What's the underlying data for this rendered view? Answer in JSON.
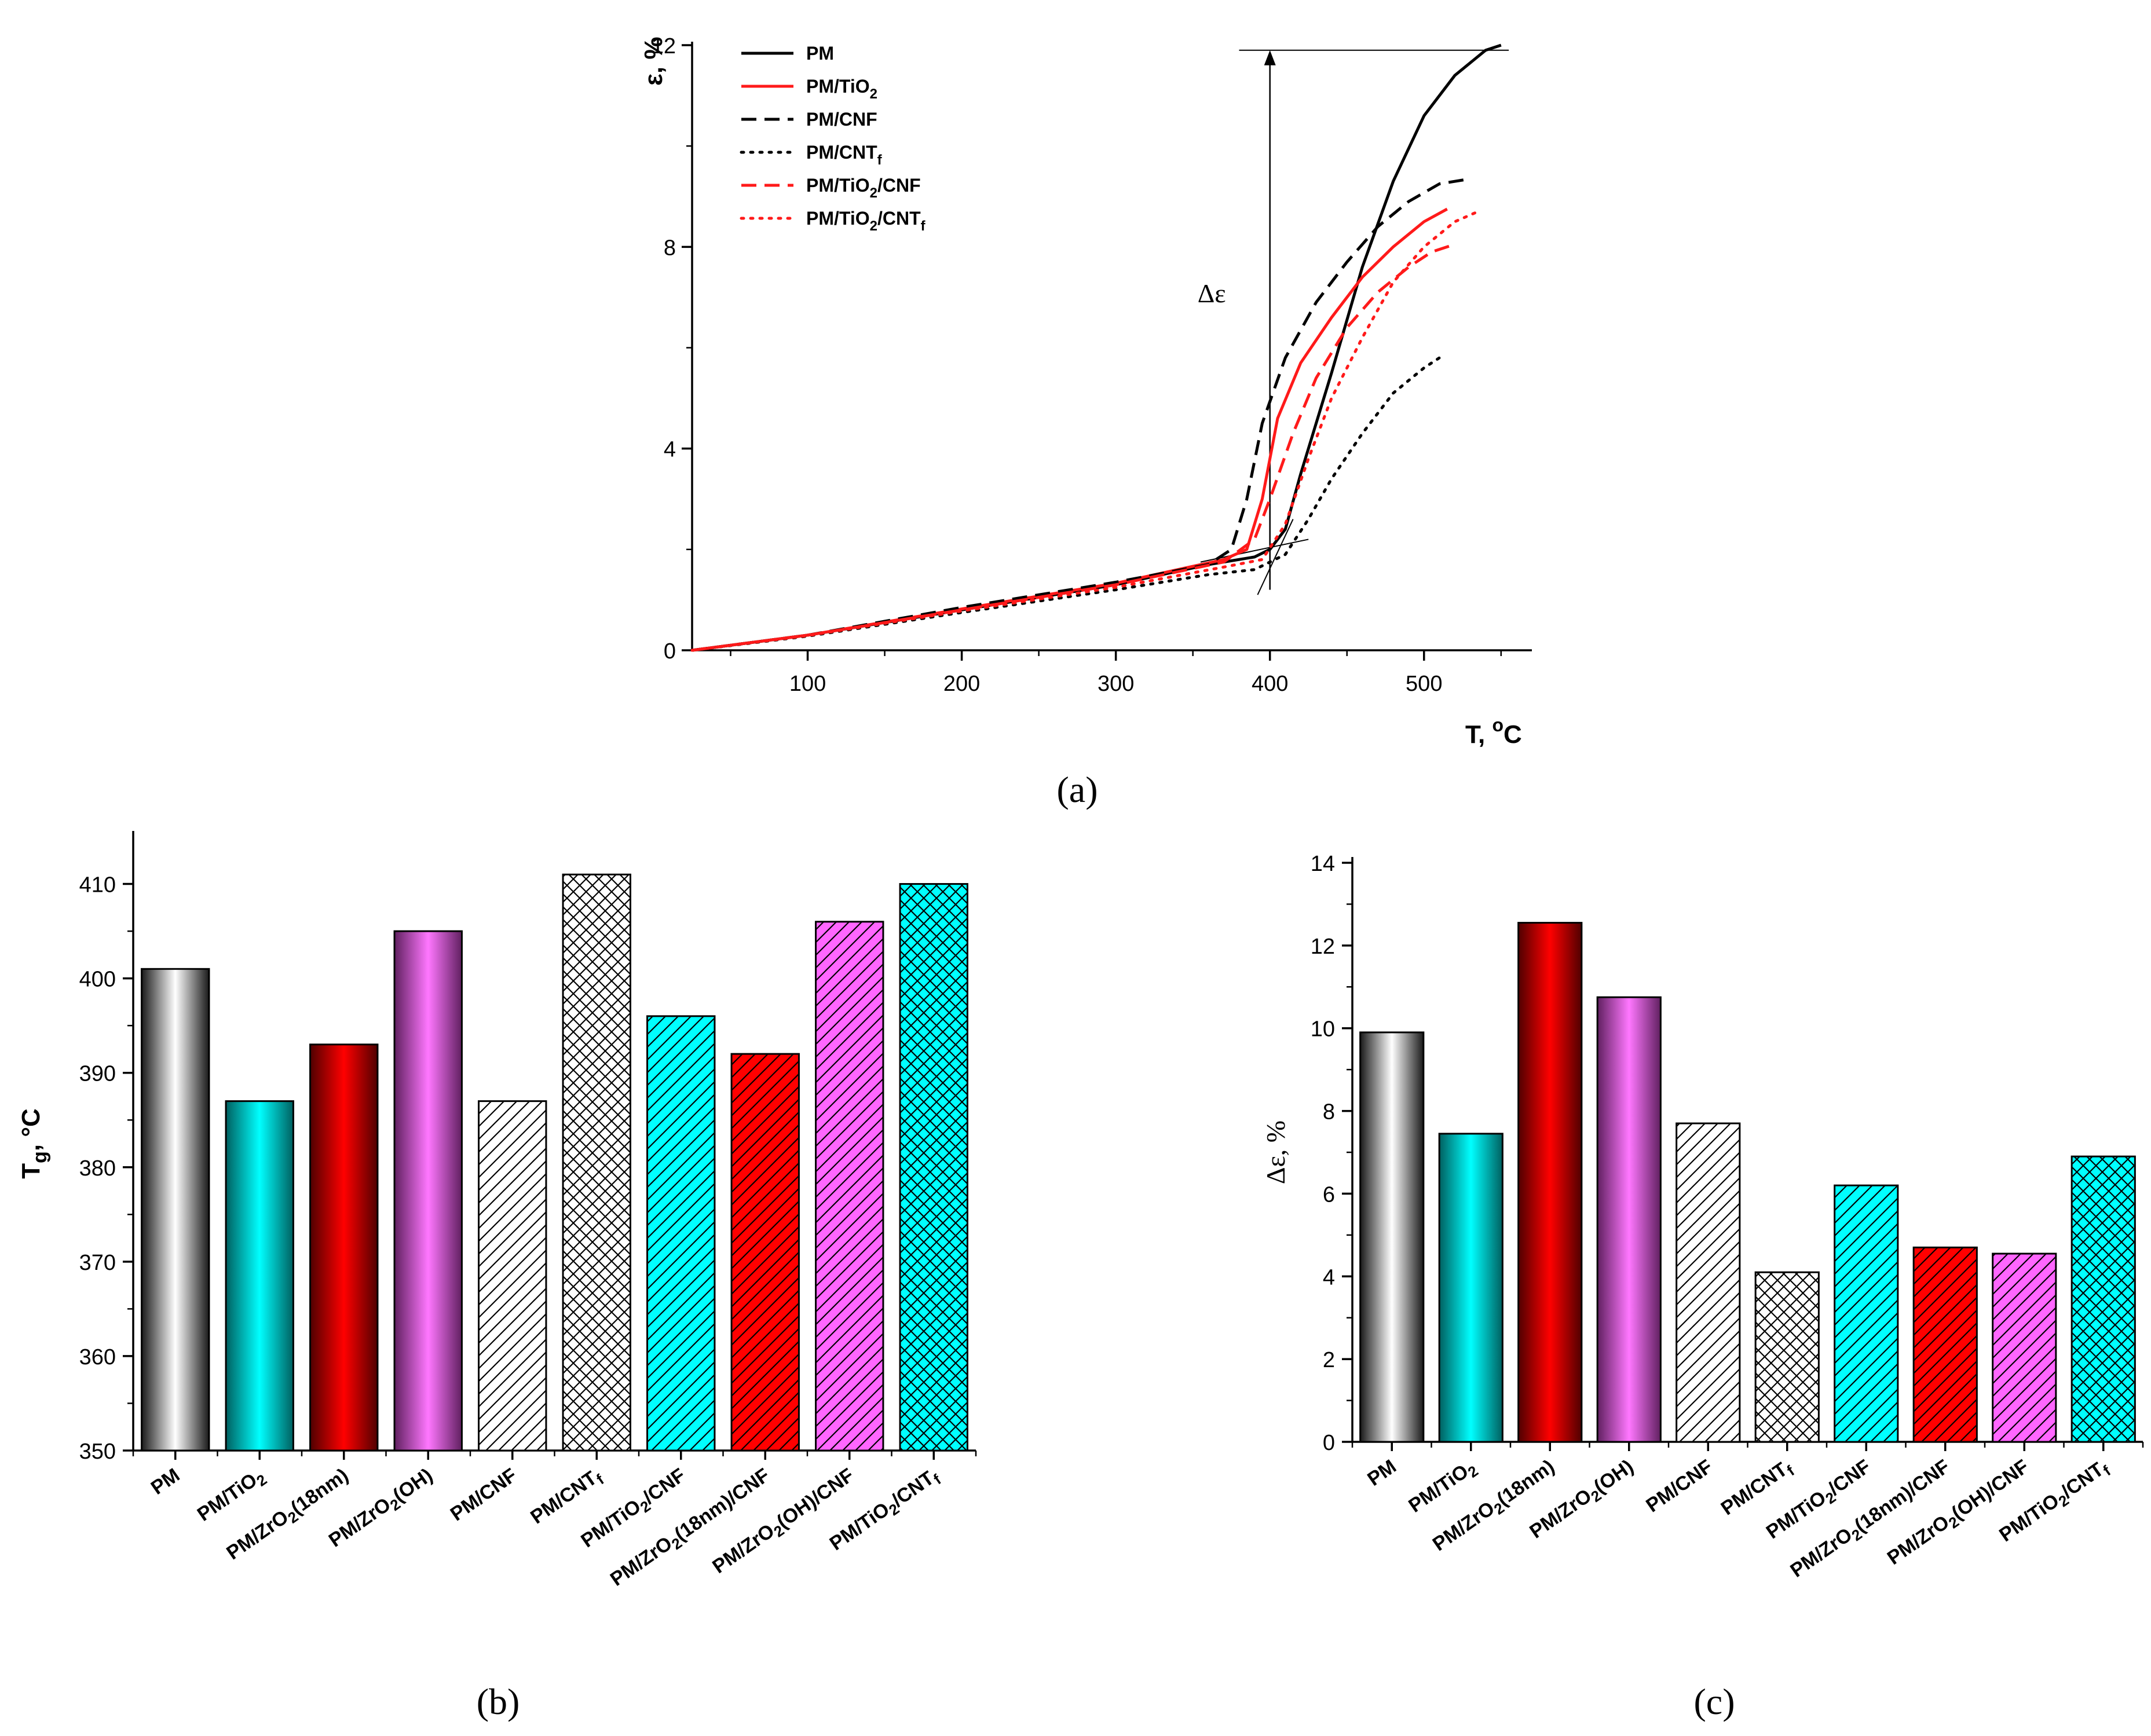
{
  "colors": {
    "black": "#000000",
    "red": "#ff1a1a",
    "cyan": "#00ffff",
    "barRed": "#ff0000",
    "magenta": "#ff66ff",
    "white": "#ffffff"
  },
  "chart_data": [
    {
      "id": "a",
      "type": "line",
      "panel_label": "(a)",
      "xlabel": "T, ",
      "xlabel_sup": "o",
      "xlabel_unit": "C",
      "ylabel": "ε, %",
      "xlim": [
        25,
        570
      ],
      "ylim": [
        0,
        12
      ],
      "xticks": [
        100,
        200,
        300,
        400,
        500
      ],
      "yticks": [
        0,
        4,
        8,
        12
      ],
      "annotation": "Δε",
      "annotation_arrow": {
        "x": 400,
        "y_from": 1.2,
        "y_to": 11.9
      },
      "tangent_lines": [
        {
          "x": [
            380,
            555
          ],
          "y": [
            11.9,
            11.9
          ]
        },
        {
          "x": [
            355,
            425
          ],
          "y": [
            1.75,
            2.2
          ]
        },
        {
          "x": [
            392,
            415
          ],
          "y": [
            1.1,
            2.6
          ]
        }
      ],
      "legend": [
        {
          "label": "PM",
          "sub": "",
          "color": "black",
          "dash": "solid"
        },
        {
          "label": "PM/TiO",
          "sub": "2",
          "color": "red",
          "dash": "solid"
        },
        {
          "label": "PM/CNF",
          "sub": "",
          "color": "black",
          "dash": "dash"
        },
        {
          "label": "PM/CNT",
          "sub": "f",
          "color": "black",
          "dash": "dot"
        },
        {
          "label": "PM/TiO",
          "sub": "2",
          "tail": "/CNF",
          "color": "red",
          "dash": "dash"
        },
        {
          "label": "PM/TiO",
          "sub": "2",
          "tail": "/CNT",
          "sub2": "f",
          "color": "red",
          "dash": "dot"
        }
      ],
      "series": [
        {
          "name": "PM",
          "color": "black",
          "dash": "solid",
          "points": [
            [
              25,
              0
            ],
            [
              100,
              0.3
            ],
            [
              200,
              0.8
            ],
            [
              300,
              1.3
            ],
            [
              360,
              1.7
            ],
            [
              390,
              1.85
            ],
            [
              400,
              2.0
            ],
            [
              410,
              2.4
            ],
            [
              420,
              3.5
            ],
            [
              440,
              5.5
            ],
            [
              460,
              7.6
            ],
            [
              480,
              9.3
            ],
            [
              500,
              10.6
            ],
            [
              520,
              11.4
            ],
            [
              540,
              11.9
            ],
            [
              550,
              12.0
            ]
          ]
        },
        {
          "name": "PM/TiO2",
          "color": "red",
          "dash": "solid",
          "points": [
            [
              25,
              0
            ],
            [
              100,
              0.3
            ],
            [
              200,
              0.82
            ],
            [
              300,
              1.33
            ],
            [
              370,
              1.8
            ],
            [
              385,
              2.0
            ],
            [
              395,
              3.0
            ],
            [
              405,
              4.6
            ],
            [
              420,
              5.7
            ],
            [
              440,
              6.6
            ],
            [
              460,
              7.4
            ],
            [
              480,
              8.0
            ],
            [
              500,
              8.5
            ],
            [
              515,
              8.75
            ]
          ]
        },
        {
          "name": "PM/CNF",
          "color": "black",
          "dash": "dash",
          "points": [
            [
              25,
              0
            ],
            [
              100,
              0.3
            ],
            [
              200,
              0.85
            ],
            [
              300,
              1.35
            ],
            [
              360,
              1.7
            ],
            [
              375,
              2.0
            ],
            [
              385,
              3.0
            ],
            [
              395,
              4.5
            ],
            [
              410,
              5.8
            ],
            [
              430,
              6.9
            ],
            [
              450,
              7.7
            ],
            [
              470,
              8.4
            ],
            [
              490,
              8.9
            ],
            [
              510,
              9.25
            ],
            [
              530,
              9.35
            ]
          ]
        },
        {
          "name": "PM/CNTf",
          "color": "black",
          "dash": "dot",
          "points": [
            [
              25,
              0
            ],
            [
              100,
              0.28
            ],
            [
              200,
              0.75
            ],
            [
              300,
              1.2
            ],
            [
              360,
              1.5
            ],
            [
              390,
              1.6
            ],
            [
              410,
              1.9
            ],
            [
              425,
              2.6
            ],
            [
              440,
              3.4
            ],
            [
              460,
              4.3
            ],
            [
              480,
              5.1
            ],
            [
              500,
              5.6
            ],
            [
              510,
              5.8
            ]
          ]
        },
        {
          "name": "PM/TiO2/CNF",
          "color": "red",
          "dash": "dash",
          "points": [
            [
              25,
              0
            ],
            [
              100,
              0.3
            ],
            [
              200,
              0.8
            ],
            [
              300,
              1.3
            ],
            [
              370,
              1.75
            ],
            [
              390,
              2.2
            ],
            [
              400,
              3.0
            ],
            [
              415,
              4.3
            ],
            [
              430,
              5.4
            ],
            [
              450,
              6.4
            ],
            [
              470,
              7.1
            ],
            [
              490,
              7.6
            ],
            [
              505,
              7.9
            ],
            [
              520,
              8.05
            ]
          ]
        },
        {
          "name": "PM/TiO2/CNTf",
          "color": "red",
          "dash": "dot",
          "points": [
            [
              25,
              0
            ],
            [
              100,
              0.29
            ],
            [
              200,
              0.78
            ],
            [
              300,
              1.25
            ],
            [
              370,
              1.65
            ],
            [
              395,
              1.8
            ],
            [
              410,
              2.5
            ],
            [
              425,
              3.8
            ],
            [
              440,
              5.0
            ],
            [
              460,
              6.2
            ],
            [
              480,
              7.3
            ],
            [
              500,
              8.0
            ],
            [
              520,
              8.5
            ],
            [
              535,
              8.7
            ]
          ]
        }
      ]
    },
    {
      "id": "b",
      "type": "bar",
      "panel_label": "(b)",
      "ylabel_main": "T",
      "ylabel_sub": "g",
      "ylabel_unit": ", °C",
      "ylim": [
        350,
        415
      ],
      "yticks": [
        350,
        360,
        370,
        380,
        390,
        400,
        410
      ],
      "categories": [
        {
          "label": "PM"
        },
        {
          "label": "PM/TiO2"
        },
        {
          "label": "PM/ZrO2(18nm)"
        },
        {
          "label": "PM/ZrO2(OH)"
        },
        {
          "label": "PM/CNF"
        },
        {
          "label": "PM/CNTf"
        },
        {
          "label": "PM/TiO2/CNF"
        },
        {
          "label": "PM/ZrO2(18nm)/CNF"
        },
        {
          "label": "PM/ZrO2(OH)/CNF"
        },
        {
          "label": "PM/TiO2/CNTf"
        }
      ],
      "values": [
        401,
        387,
        393,
        405,
        387,
        411,
        396,
        392,
        406,
        410
      ],
      "fills": [
        "grad-white",
        "grad-cyan",
        "grad-red",
        "grad-magenta",
        "hatch-white",
        "cross-white",
        "hatch-cyan",
        "hatch-red",
        "hatch-magenta",
        "cross-cyan"
      ]
    },
    {
      "id": "c",
      "type": "bar",
      "panel_label": "(c)",
      "ylabel": "Δε, %",
      "ylim": [
        0,
        14
      ],
      "yticks": [
        0,
        2,
        4,
        6,
        8,
        10,
        12,
        14
      ],
      "categories": [
        {
          "label": "PM"
        },
        {
          "label": "PM/TiO2"
        },
        {
          "label": "PM/ZrO2(18nm)"
        },
        {
          "label": "PM/ZrO2(OH)"
        },
        {
          "label": "PM/CNF"
        },
        {
          "label": "PM/CNTf"
        },
        {
          "label": "PM/TiO2/CNF"
        },
        {
          "label": "PM/ZrO2(18nm)/CNF"
        },
        {
          "label": "PM/ZrO2(OH)/CNF"
        },
        {
          "label": "PM/TiO2/CNTf"
        }
      ],
      "values": [
        9.9,
        7.45,
        12.55,
        10.75,
        7.7,
        4.1,
        6.2,
        4.7,
        4.55,
        6.9
      ],
      "fills": [
        "grad-white",
        "grad-cyan",
        "grad-red",
        "grad-magenta",
        "hatch-white",
        "cross-white",
        "hatch-cyan",
        "hatch-red",
        "hatch-magenta",
        "cross-cyan"
      ]
    }
  ]
}
